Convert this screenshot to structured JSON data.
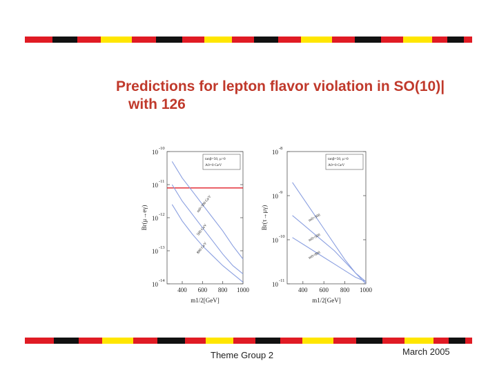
{
  "slide": {
    "title_line1": "Predictions for lepton flavor violation in SO(10)",
    "title_line2": "with 126",
    "footer_left": "Theme Group 2",
    "footer_right": "March 2005",
    "colors": {
      "title": "#c0392b",
      "stripe_red": "#e01b24",
      "stripe_yellow": "#ffe600",
      "stripe_black": "#111111",
      "curve": "#8a9fe0",
      "bound": "#e01b24"
    }
  },
  "chart_data": [
    {
      "type": "line",
      "xlabel": "m1/2[GeV]",
      "ylabel": "Br(μ→eγ)",
      "xlim": [
        250,
        1000
      ],
      "ylim": [
        -14,
        -10
      ],
      "log_y": true,
      "xticks": [
        400,
        600,
        800,
        1000
      ],
      "yticks": [
        -14,
        -13,
        -12,
        -11,
        -10
      ],
      "legend": [
        "tanβ=50, μ>0",
        "A0=0 GeV"
      ],
      "series": [
        {
          "name": "m0=300 GeV",
          "x": [
            300,
            400,
            500,
            600,
            700,
            800,
            900,
            1000
          ],
          "y": [
            -10.3,
            -10.8,
            -11.2,
            -11.6,
            -12.0,
            -12.4,
            -12.85,
            -13.25
          ]
        },
        {
          "name": "500 GeV",
          "x": [
            300,
            400,
            500,
            600,
            700,
            800,
            900,
            1000
          ],
          "y": [
            -11.0,
            -11.5,
            -11.9,
            -12.3,
            -12.7,
            -13.1,
            -13.45,
            -13.7
          ]
        },
        {
          "name": "800 GeV",
          "x": [
            300,
            400,
            500,
            600,
            700,
            800,
            900,
            1000
          ],
          "y": [
            -11.6,
            -12.1,
            -12.5,
            -12.85,
            -13.15,
            -13.45,
            -13.7,
            -13.95
          ]
        }
      ],
      "hline": -11.1
    },
    {
      "type": "line",
      "xlabel": "m1/2[GeV]",
      "ylabel": "Br(τ→μγ)",
      "xlim": [
        250,
        1000
      ],
      "ylim": [
        -11,
        -8
      ],
      "log_y": true,
      "xticks": [
        400,
        600,
        800,
        1000
      ],
      "yticks": [
        -11,
        -10,
        -9,
        -8
      ],
      "legend": [
        "tanβ=50, μ>0",
        "A0=0 GeV"
      ],
      "series": [
        {
          "name": "m0=300",
          "x": [
            300,
            400,
            500,
            600,
            700,
            800,
            900,
            1000
          ],
          "y": [
            -8.7,
            -9.05,
            -9.4,
            -9.75,
            -10.1,
            -10.45,
            -10.75,
            -11.0
          ]
        },
        {
          "name": "m0=500",
          "x": [
            300,
            400,
            500,
            600,
            700,
            800,
            900,
            1000
          ],
          "y": [
            -9.45,
            -9.65,
            -9.85,
            -10.05,
            -10.25,
            -10.5,
            -10.75,
            -10.95
          ]
        },
        {
          "name": "m0=800",
          "x": [
            300,
            400,
            500,
            600,
            700,
            800,
            900,
            1000
          ],
          "y": [
            -9.95,
            -10.1,
            -10.25,
            -10.4,
            -10.55,
            -10.7,
            -10.85,
            -10.95
          ]
        }
      ]
    }
  ]
}
